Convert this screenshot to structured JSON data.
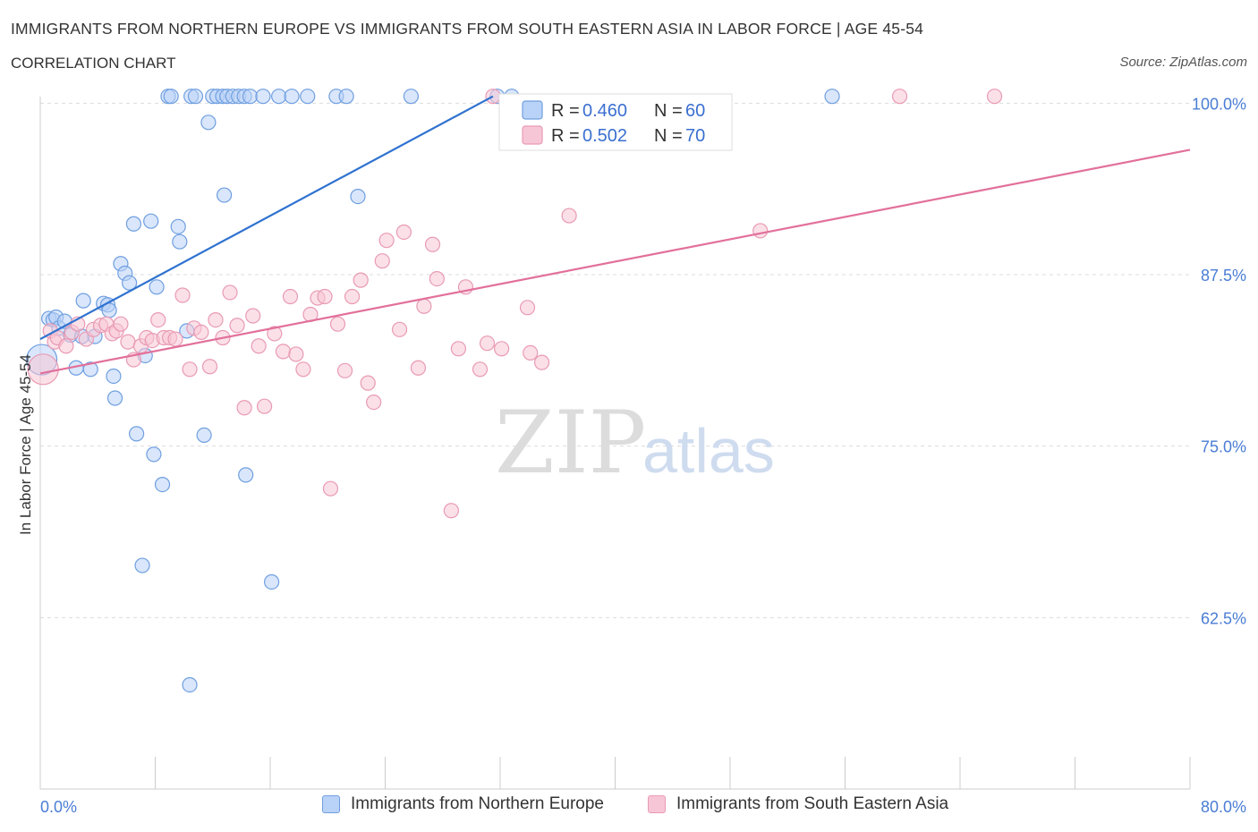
{
  "title": "IMMIGRANTS FROM NORTHERN EUROPE VS IMMIGRANTS FROM SOUTH EASTERN ASIA IN LABOR FORCE | AGE 45-54",
  "subtitle": "CORRELATION CHART",
  "source": "Source: ZipAtlas.com",
  "watermark": {
    "zip": "ZIP",
    "atlas": "atlas"
  },
  "colors": {
    "blue_fill": "#b9d2f7",
    "blue_stroke": "#6f9fe0",
    "blue_line": "#2f72d0",
    "pink_fill": "#f7c6d6",
    "pink_stroke": "#e99ab4",
    "pink_line": "#e2709a",
    "grid": "#dcdcdc",
    "tick_text": "#4a7dd4"
  },
  "legend": {
    "r_label": "R =",
    "n_label": "N =",
    "rows": [
      {
        "r": "0.460",
        "n": "60"
      },
      {
        "r": "0.502",
        "n": "70"
      }
    ]
  },
  "bottom_legend": [
    "Immigrants from Northern Europe",
    "Immigrants from South Eastern Asia"
  ],
  "chart_data": {
    "type": "scatter",
    "xlabel": "",
    "ylabel": "In Labor Force | Age 45-54",
    "xlim": [
      0,
      80
    ],
    "ylim": [
      50,
      101
    ],
    "x_tick_labels": [
      {
        "value": 0,
        "label": "0.0%"
      },
      {
        "value": 80,
        "label": "80.0%"
      }
    ],
    "y_ticks": [
      {
        "value": 100,
        "label": "100.0%"
      },
      {
        "value": 87.5,
        "label": "87.5%"
      },
      {
        "value": 75,
        "label": "75.0%"
      },
      {
        "value": 62.5,
        "label": "62.5%"
      }
    ],
    "x_minor_ticks": [
      8,
      16,
      24,
      32,
      40,
      48,
      56,
      64,
      72,
      80
    ],
    "grid": true,
    "series": [
      {
        "name": "Immigrants from Northern Europe",
        "color": "#6f9fe0",
        "points": [
          [
            0.6,
            84.3
          ],
          [
            0.9,
            84.2
          ],
          [
            1.1,
            84.4
          ],
          [
            1.3,
            83.6
          ],
          [
            1.7,
            84.1
          ],
          [
            2.1,
            83.1
          ],
          [
            2.5,
            80.7
          ],
          [
            2.9,
            83.0
          ],
          [
            3.0,
            85.6
          ],
          [
            3.5,
            80.6
          ],
          [
            3.8,
            83.0
          ],
          [
            4.4,
            85.4
          ],
          [
            4.7,
            85.3
          ],
          [
            4.8,
            84.9
          ],
          [
            5.1,
            80.1
          ],
          [
            5.2,
            78.5
          ],
          [
            5.6,
            88.3
          ],
          [
            5.9,
            87.6
          ],
          [
            6.2,
            86.9
          ],
          [
            6.5,
            91.2
          ],
          [
            6.7,
            75.9
          ],
          [
            7.1,
            66.3
          ],
          [
            7.3,
            81.6
          ],
          [
            7.7,
            91.4
          ],
          [
            7.9,
            74.4
          ],
          [
            8.1,
            86.6
          ],
          [
            8.5,
            72.2
          ],
          [
            8.9,
            100.5
          ],
          [
            9.1,
            100.5
          ],
          [
            9.6,
            91.0
          ],
          [
            9.7,
            89.9
          ],
          [
            10.2,
            83.4
          ],
          [
            10.4,
            57.6
          ],
          [
            10.5,
            100.5
          ],
          [
            10.8,
            100.5
          ],
          [
            11.4,
            75.8
          ],
          [
            11.7,
            98.6
          ],
          [
            12.0,
            100.5
          ],
          [
            12.3,
            100.5
          ],
          [
            12.7,
            100.5
          ],
          [
            13.0,
            100.5
          ],
          [
            13.4,
            100.5
          ],
          [
            13.8,
            100.5
          ],
          [
            14.2,
            100.5
          ],
          [
            14.6,
            100.5
          ],
          [
            12.8,
            93.3
          ],
          [
            14.3,
            72.9
          ],
          [
            15.5,
            100.5
          ],
          [
            16.1,
            65.1
          ],
          [
            16.6,
            100.5
          ],
          [
            17.5,
            100.5
          ],
          [
            18.6,
            100.5
          ],
          [
            20.6,
            100.5
          ],
          [
            21.3,
            100.5
          ],
          [
            22.1,
            93.2
          ],
          [
            25.8,
            100.5
          ],
          [
            31.8,
            100.5
          ],
          [
            32.8,
            100.5
          ],
          [
            55.1,
            100.5
          ],
          [
            0.1,
            81.3
          ]
        ]
      },
      {
        "name": "Immigrants from South Eastern Asia",
        "color": "#e99ab4",
        "points": [
          [
            0.2,
            80.6
          ],
          [
            0.7,
            83.4
          ],
          [
            1.0,
            82.6
          ],
          [
            1.2,
            82.9
          ],
          [
            1.8,
            82.3
          ],
          [
            2.2,
            83.3
          ],
          [
            2.6,
            83.9
          ],
          [
            3.2,
            82.8
          ],
          [
            3.7,
            83.5
          ],
          [
            4.2,
            83.8
          ],
          [
            4.6,
            83.9
          ],
          [
            5.0,
            83.2
          ],
          [
            5.3,
            83.4
          ],
          [
            5.6,
            83.9
          ],
          [
            6.1,
            82.6
          ],
          [
            6.5,
            81.3
          ],
          [
            7.0,
            82.3
          ],
          [
            7.4,
            82.9
          ],
          [
            7.8,
            82.7
          ],
          [
            8.2,
            84.2
          ],
          [
            8.6,
            82.9
          ],
          [
            9.0,
            82.9
          ],
          [
            9.4,
            82.8
          ],
          [
            9.9,
            86.0
          ],
          [
            10.4,
            80.6
          ],
          [
            10.7,
            83.6
          ],
          [
            11.2,
            83.3
          ],
          [
            11.8,
            80.8
          ],
          [
            12.2,
            84.2
          ],
          [
            12.7,
            82.9
          ],
          [
            13.2,
            86.2
          ],
          [
            13.7,
            83.8
          ],
          [
            14.2,
            77.8
          ],
          [
            14.8,
            84.5
          ],
          [
            15.2,
            82.3
          ],
          [
            15.6,
            77.9
          ],
          [
            16.3,
            83.2
          ],
          [
            16.9,
            81.9
          ],
          [
            17.4,
            85.9
          ],
          [
            17.8,
            81.7
          ],
          [
            18.3,
            80.6
          ],
          [
            18.8,
            84.6
          ],
          [
            19.3,
            85.8
          ],
          [
            19.8,
            85.9
          ],
          [
            20.2,
            71.9
          ],
          [
            20.7,
            83.9
          ],
          [
            21.2,
            80.5
          ],
          [
            21.7,
            85.9
          ],
          [
            22.3,
            87.1
          ],
          [
            22.8,
            79.6
          ],
          [
            23.2,
            78.2
          ],
          [
            23.8,
            88.5
          ],
          [
            24.1,
            90.0
          ],
          [
            25.0,
            83.5
          ],
          [
            25.3,
            90.6
          ],
          [
            26.3,
            80.7
          ],
          [
            26.7,
            85.2
          ],
          [
            27.3,
            89.7
          ],
          [
            27.6,
            87.2
          ],
          [
            28.6,
            70.3
          ],
          [
            29.1,
            82.1
          ],
          [
            29.6,
            86.6
          ],
          [
            30.6,
            80.6
          ],
          [
            31.1,
            82.5
          ],
          [
            32.1,
            82.1
          ],
          [
            33.9,
            85.1
          ],
          [
            34.1,
            81.8
          ],
          [
            34.9,
            81.1
          ],
          [
            36.8,
            91.8
          ],
          [
            50.1,
            90.7
          ]
        ]
      },
      {
        "name": "",
        "color": "#e99ab4",
        "points": [
          [
            31.5,
            100.5
          ],
          [
            59.8,
            100.5
          ],
          [
            66.4,
            100.5
          ]
        ]
      }
    ],
    "trend_lines": [
      {
        "series": "Immigrants from Northern Europe",
        "from": [
          0,
          82.8
        ],
        "to": [
          31.5,
          100.5
        ]
      },
      {
        "series": "Immigrants from South Eastern Asia",
        "from": [
          0,
          80.3
        ],
        "to": [
          80,
          96.6
        ]
      }
    ]
  }
}
